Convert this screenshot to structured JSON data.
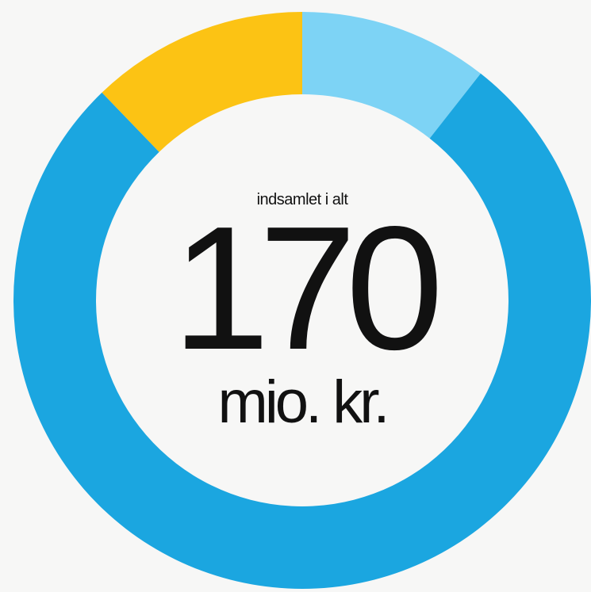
{
  "chart_data": {
    "type": "donut",
    "values": [
      10.6,
      77.2,
      12.2
    ],
    "colors": [
      "#7dd3f5",
      "#1ba6e0",
      "#fcc314"
    ],
    "center_label": "indsamlet i alt",
    "center_value": 170,
    "center_unit": "mio. kr."
  }
}
